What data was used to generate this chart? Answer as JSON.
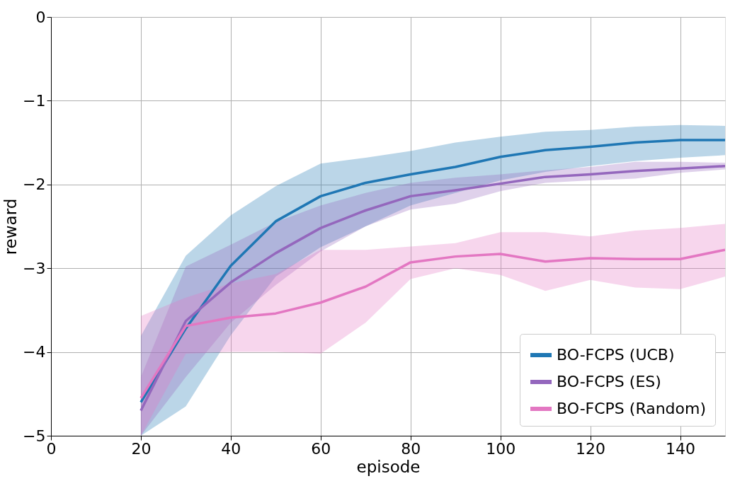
{
  "chart_data": {
    "type": "line",
    "xlabel": "episode",
    "ylabel": "reward",
    "x": [
      20,
      30,
      40,
      50,
      60,
      70,
      80,
      90,
      100,
      110,
      120,
      130,
      140,
      150
    ],
    "series": [
      {
        "name": "BO-FCPS (UCB)",
        "color": "#1f77b4",
        "values": [
          -4.6,
          -3.72,
          -2.97,
          -2.44,
          -2.14,
          -1.98,
          -1.88,
          -1.79,
          -1.67,
          -1.59,
          -1.55,
          -1.5,
          -1.47,
          -1.47
        ],
        "upper": [
          -3.81,
          -2.85,
          -2.37,
          -2.02,
          -1.75,
          -1.68,
          -1.6,
          -1.5,
          -1.43,
          -1.37,
          -1.35,
          -1.31,
          -1.29,
          -1.3
        ],
        "lower": [
          -5,
          -4.65,
          -3.8,
          -3.1,
          -2.75,
          -2.5,
          -2.25,
          -2.1,
          -1.95,
          -1.85,
          -1.78,
          -1.72,
          -1.68,
          -1.65
        ]
      },
      {
        "name": "BO-FCPS (ES)",
        "color": "#9467bd",
        "values": [
          -4.7,
          -3.63,
          -3.17,
          -2.82,
          -2.52,
          -2.31,
          -2.14,
          -2.07,
          -1.99,
          -1.91,
          -1.88,
          -1.84,
          -1.81,
          -1.78
        ],
        "upper": [
          -4.3,
          -2.98,
          -2.72,
          -2.45,
          -2.25,
          -2.1,
          -1.98,
          -1.92,
          -1.88,
          -1.83,
          -1.79,
          -1.73,
          -1.73,
          -1.74
        ],
        "lower": [
          -5,
          -4.3,
          -3.65,
          -3.2,
          -2.8,
          -2.5,
          -2.3,
          -2.23,
          -2.08,
          -1.98,
          -1.95,
          -1.93,
          -1.86,
          -1.82
        ]
      },
      {
        "name": "BO-FCPS (Random)",
        "color": "#e377c2",
        "values": [
          -4.55,
          -3.69,
          -3.59,
          -3.54,
          -3.41,
          -3.22,
          -2.93,
          -2.86,
          -2.83,
          -2.92,
          -2.88,
          -2.89,
          -2.89,
          -2.78
        ],
        "upper": [
          -3.57,
          -3.35,
          -3.18,
          -3.07,
          -2.78,
          -2.78,
          -2.74,
          -2.7,
          -2.57,
          -2.57,
          -2.62,
          -2.55,
          -2.52,
          -2.47
        ],
        "lower": [
          -5,
          -4.02,
          -4.0,
          -4.0,
          -4.02,
          -3.65,
          -3.13,
          -3.0,
          -3.08,
          -3.27,
          -3.14,
          -3.23,
          -3.25,
          -3.1
        ]
      }
    ],
    "xlim": [
      0,
      150
    ],
    "xticks": [
      0,
      20,
      40,
      60,
      80,
      100,
      120,
      140
    ],
    "ylim": [
      -5,
      0
    ],
    "yticks": [
      {
        "value": -5,
        "label": "−5"
      },
      {
        "value": -4,
        "label": "−4"
      },
      {
        "value": -3,
        "label": "−3"
      },
      {
        "value": -2,
        "label": "−2"
      },
      {
        "value": -1,
        "label": "−1"
      },
      0
    ],
    "grid": true,
    "legend": "bottom right",
    "marker": "none",
    "line_style": "solid"
  }
}
